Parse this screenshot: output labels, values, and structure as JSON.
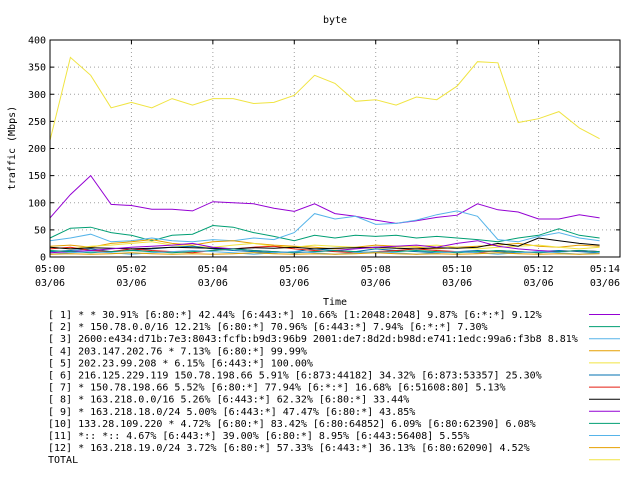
{
  "chart_data": {
    "type": "line",
    "title": "byte",
    "xlabel": "Time",
    "ylabel": "traffic (Mbps)",
    "ylim": [
      0,
      400
    ],
    "yticks": [
      "0",
      "50",
      "100",
      "150",
      "200",
      "250",
      "300",
      "350",
      "400"
    ],
    "xlim": [
      "05:00",
      "05:14"
    ],
    "xticks": [
      {
        "time": "05:00",
        "date": "03/06"
      },
      {
        "time": "05:02",
        "date": "03/06"
      },
      {
        "time": "05:04",
        "date": "03/06"
      },
      {
        "time": "05:06",
        "date": "03/06"
      },
      {
        "time": "05:08",
        "date": "03/06"
      },
      {
        "time": "05:10",
        "date": "03/06"
      },
      {
        "time": "05:12",
        "date": "03/06"
      },
      {
        "time": "05:14",
        "date": "03/06"
      }
    ],
    "grid": true,
    "legend_position": "bottom",
    "x": [
      "05:00:00",
      "05:00:30",
      "05:01:00",
      "05:01:30",
      "05:02:00",
      "05:02:30",
      "05:03:00",
      "05:03:30",
      "05:04:00",
      "05:04:30",
      "05:05:00",
      "05:05:30",
      "05:06:00",
      "05:06:30",
      "05:07:00",
      "05:07:30",
      "05:08:00",
      "05:08:30",
      "05:09:00",
      "05:09:30",
      "05:10:00",
      "05:10:30",
      "05:11:00",
      "05:11:30",
      "05:12:00",
      "05:12:30",
      "05:13:00",
      "05:13:30"
    ],
    "series": [
      {
        "name": "[ 1] * * 30.91% [6:80:*] 42.44% [6:443:*] 10.66% [1:2048:2048] 9.87% [6:*:*] 9.12%",
        "color": "#9400d3",
        "values": [
          72,
          115,
          150,
          97,
          95,
          88,
          88,
          85,
          102,
          100,
          98,
          90,
          84,
          98,
          80,
          75,
          68,
          62,
          67,
          73,
          77,
          98,
          87,
          83,
          70,
          70,
          78,
          72
        ]
      },
      {
        "name": "[ 2] * 150.78.0.0/16 12.21% [6:80:*] 70.96% [6:443:*] 7.94% [6:*:*] 7.30%",
        "color": "#009e73",
        "values": [
          35,
          53,
          55,
          45,
          40,
          30,
          40,
          42,
          58,
          55,
          45,
          38,
          30,
          40,
          35,
          40,
          38,
          40,
          35,
          38,
          35,
          32,
          28,
          35,
          40,
          52,
          40,
          35
        ]
      },
      {
        "name": "[ 3] 2600:e434:d71b:7e3:8043:fcfb:b9d3:96b9 2001:de7:8d2d:b98d:e741:1edc:99a6:f3b8 8.81%",
        "color": "#56b4e9",
        "values": [
          30,
          35,
          42,
          28,
          30,
          35,
          30,
          28,
          32,
          30,
          35,
          32,
          45,
          80,
          70,
          75,
          60,
          62,
          68,
          78,
          85,
          75,
          32,
          28,
          38,
          45,
          35,
          30
        ]
      },
      {
        "name": "[ 4] 203.147.202.76 * 7.13% [6:80:*] 99.99%",
        "color": "#e69f00",
        "values": [
          20,
          22,
          18,
          25,
          28,
          32,
          25,
          22,
          28,
          30,
          25,
          22,
          20,
          18,
          15,
          18,
          22,
          20,
          18,
          15,
          18,
          20,
          22,
          25,
          20,
          18,
          22,
          20
        ]
      },
      {
        "name": "[ 5] 202.23.99.208 * 6.15% [6:443:*] 100.00%",
        "color": "#f0e442",
        "values": [
          18,
          15,
          20,
          22,
          25,
          28,
          22,
          20,
          18,
          22,
          25,
          20,
          18,
          22,
          20,
          18,
          15,
          18,
          20,
          22,
          18,
          15,
          18,
          20,
          22,
          18,
          15,
          18
        ]
      },
      {
        "name": "[ 6] 216.125.229.119 150.78.198.66 5.91% [6:873:44182] 34.32% [6:873:53357] 25.30%",
        "color": "#0072b2",
        "values": [
          10,
          12,
          15,
          10,
          12,
          15,
          18,
          20,
          15,
          12,
          10,
          8,
          10,
          15,
          12,
          10,
          15,
          12,
          10,
          8,
          10,
          12,
          10,
          8,
          10,
          12,
          10,
          8
        ]
      },
      {
        "name": "[ 7] * 150.78.198.66 5.52% [6:80:*] 77.94% [6:*:*] 16.68% [6:51608:80] 5.13%",
        "color": "#e51e10",
        "values": [
          15,
          18,
          12,
          10,
          15,
          12,
          10,
          8,
          12,
          15,
          18,
          20,
          15,
          12,
          10,
          8,
          10,
          12,
          15,
          12,
          10,
          8,
          12,
          10,
          8,
          10,
          12,
          10
        ]
      },
      {
        "name": "[ 8] * 163.218.0.0/16 5.26% [6:443:*] 62.32% [6:80:*] 33.44%",
        "color": "#000000",
        "values": [
          18,
          15,
          17,
          16,
          15,
          16,
          18,
          17,
          16,
          15,
          17,
          16,
          18,
          15,
          16,
          17,
          18,
          16,
          15,
          17,
          16,
          18,
          25,
          20,
          35,
          30,
          25,
          22
        ]
      },
      {
        "name": "[ 9] * 163.218.18.0/24 5.00% [6:443:*] 47.47% [6:80:*] 43.85%",
        "color": "#9400d3",
        "values": [
          8,
          10,
          12,
          15,
          18,
          20,
          22,
          25,
          18,
          15,
          12,
          10,
          8,
          10,
          12,
          15,
          18,
          20,
          22,
          18,
          25,
          30,
          20,
          15,
          12,
          10,
          12,
          10
        ]
      },
      {
        "name": "[10] 133.28.109.220 * 4.72% [6:80:*] 83.42% [6:80:64852] 6.09% [6:80:62390] 6.08%",
        "color": "#009e73",
        "values": [
          12,
          10,
          8,
          10,
          12,
          10,
          8,
          10,
          12,
          15,
          12,
          10,
          8,
          10,
          12,
          10,
          8,
          10,
          12,
          10,
          8,
          10,
          12,
          10,
          8,
          10,
          12,
          10
        ]
      },
      {
        "name": "[11] *:: *:: 4.67% [6:443:*] 39.00% [6:80:*] 8.95% [6:443:56408] 5.55%",
        "color": "#56b4e9",
        "values": [
          5,
          8,
          10,
          8,
          5,
          8,
          10,
          12,
          10,
          8,
          5,
          8,
          10,
          8,
          5,
          8,
          10,
          8,
          5,
          8,
          10,
          8,
          5,
          8,
          10,
          8,
          5,
          8
        ]
      },
      {
        "name": "[12] * 163.218.19.0/24 3.72% [6:80:*] 57.33% [6:443:*] 36.13% [6:80:62090] 4.52%",
        "color": "#e69f00",
        "values": [
          5,
          6,
          5,
          6,
          8,
          6,
          5,
          6,
          5,
          6,
          8,
          6,
          5,
          6,
          5,
          6,
          8,
          6,
          5,
          6,
          5,
          6,
          8,
          6,
          5,
          6,
          5,
          6
        ]
      },
      {
        "name": "TOTAL",
        "color": "#f0e442",
        "values": [
          215,
          368,
          335,
          275,
          285,
          275,
          292,
          280,
          292,
          292,
          283,
          285,
          298,
          335,
          320,
          287,
          290,
          280,
          295,
          290,
          315,
          360,
          358,
          248,
          255,
          268,
          238,
          218
        ]
      }
    ]
  }
}
